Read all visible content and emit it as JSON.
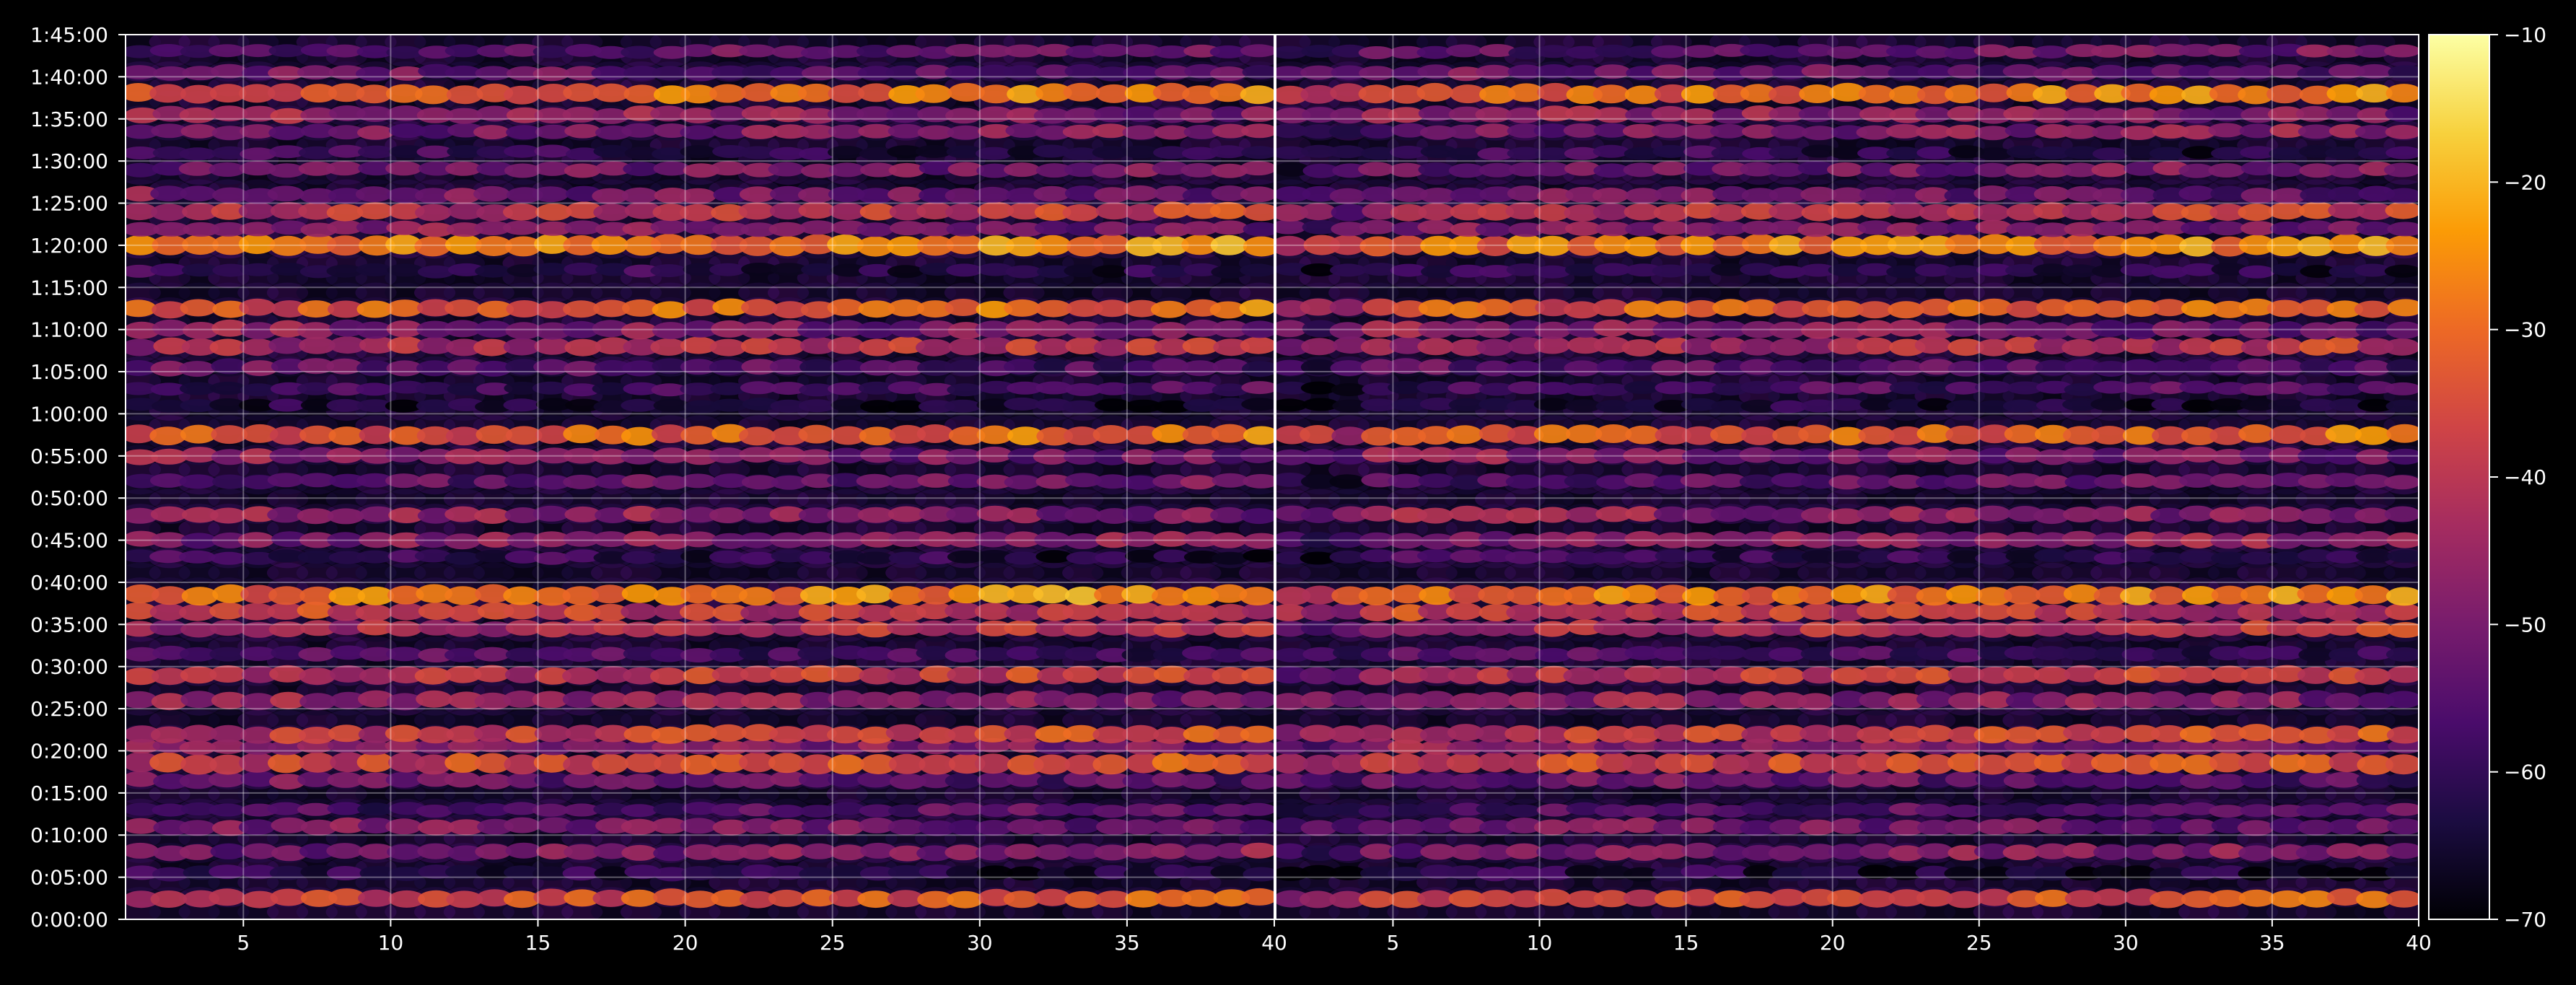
{
  "colors": {
    "background": "#000000",
    "axes": "#ffffff",
    "grid": "#ffffff",
    "colormap": "inferno",
    "colormap_stops": [
      "#000004",
      "#1b0c41",
      "#4a0c6b",
      "#781c6d",
      "#a52c60",
      "#cf4446",
      "#ed6925",
      "#fb9b06",
      "#f7d13d",
      "#fcffa4"
    ]
  },
  "chart_data": {
    "type": "heatmap",
    "title": "",
    "xlabel": "",
    "ylabel": "",
    "grid": true,
    "panels": [
      {
        "name": "left",
        "xlim": [
          1,
          40
        ],
        "xticks": [
          5,
          10,
          15,
          20,
          25,
          30,
          35,
          40
        ],
        "show_y_ticks": true
      },
      {
        "name": "right",
        "xlim": [
          1,
          40
        ],
        "xticks": [
          5,
          10,
          15,
          20,
          25,
          30,
          35,
          40
        ],
        "show_y_ticks": false
      }
    ],
    "y_time_range_seconds": [
      0,
      6300
    ],
    "yticks": [
      "0:00:00",
      "0:05:00",
      "0:10:00",
      "0:15:00",
      "0:20:00",
      "0:25:00",
      "0:30:00",
      "0:35:00",
      "0:40:00",
      "0:45:00",
      "0:50:00",
      "0:55:00",
      "1:00:00",
      "1:05:00",
      "1:10:00",
      "1:15:00",
      "1:20:00",
      "1:25:00",
      "1:30:00",
      "1:35:00",
      "1:40:00",
      "1:45:00"
    ],
    "colorbar": {
      "range": [
        -70,
        -10
      ],
      "ticks": [
        "−10",
        "−20",
        "−30",
        "−40",
        "−50",
        "−60",
        "−70"
      ]
    },
    "bands": [
      {
        "time": "0:02:30",
        "level": -38,
        "width": 1.0
      },
      {
        "time": "0:05:30",
        "level": -60,
        "width": 0.8
      },
      {
        "time": "0:08:00",
        "level": -52,
        "width": 0.9
      },
      {
        "time": "0:11:00",
        "level": -48,
        "width": 0.9
      },
      {
        "time": "0:13:00",
        "level": -58,
        "width": 0.7
      },
      {
        "time": "0:16:30",
        "level": -50,
        "width": 0.9
      },
      {
        "time": "0:18:30",
        "level": -38,
        "width": 1.2
      },
      {
        "time": "0:20:30",
        "level": -44,
        "width": 0.8
      },
      {
        "time": "0:22:00",
        "level": -40,
        "width": 1.0
      },
      {
        "time": "0:26:00",
        "level": -44,
        "width": 1.0
      },
      {
        "time": "0:29:00",
        "level": -42,
        "width": 1.0
      },
      {
        "time": "0:31:30",
        "level": -54,
        "width": 0.8
      },
      {
        "time": "0:34:30",
        "level": -44,
        "width": 0.9
      },
      {
        "time": "0:36:30",
        "level": -36,
        "width": 1.0
      },
      {
        "time": "0:38:30",
        "level": -30,
        "width": 1.1
      },
      {
        "time": "0:43:00",
        "level": -58,
        "width": 0.7
      },
      {
        "time": "0:45:00",
        "level": -50,
        "width": 0.9
      },
      {
        "time": "0:48:00",
        "level": -44,
        "width": 0.9
      },
      {
        "time": "0:52:00",
        "level": -56,
        "width": 0.8
      },
      {
        "time": "0:55:00",
        "level": -46,
        "width": 0.9
      },
      {
        "time": "0:57:30",
        "level": -34,
        "width": 1.1
      },
      {
        "time": "1:01:00",
        "level": -62,
        "width": 0.7
      },
      {
        "time": "1:03:00",
        "level": -60,
        "width": 0.7
      },
      {
        "time": "1:05:30",
        "level": -52,
        "width": 0.9
      },
      {
        "time": "1:08:00",
        "level": -44,
        "width": 1.0
      },
      {
        "time": "1:10:00",
        "level": -46,
        "width": 1.0
      },
      {
        "time": "1:12:30",
        "level": -34,
        "width": 1.0
      },
      {
        "time": "1:17:00",
        "level": -58,
        "width": 0.7
      },
      {
        "time": "1:20:00",
        "level": -30,
        "width": 1.2
      },
      {
        "time": "1:22:00",
        "level": -46,
        "width": 0.8
      },
      {
        "time": "1:24:00",
        "level": -42,
        "width": 1.0
      },
      {
        "time": "1:26:00",
        "level": -48,
        "width": 0.9
      },
      {
        "time": "1:29:00",
        "level": -54,
        "width": 0.8
      },
      {
        "time": "1:31:00",
        "level": -58,
        "width": 0.7
      },
      {
        "time": "1:33:30",
        "level": -52,
        "width": 0.8
      },
      {
        "time": "1:35:30",
        "level": -44,
        "width": 0.9
      },
      {
        "time": "1:38:00",
        "level": -32,
        "width": 1.1
      },
      {
        "time": "1:40:30",
        "level": -50,
        "width": 0.8
      },
      {
        "time": "1:43:00",
        "level": -56,
        "width": 0.7
      }
    ]
  }
}
